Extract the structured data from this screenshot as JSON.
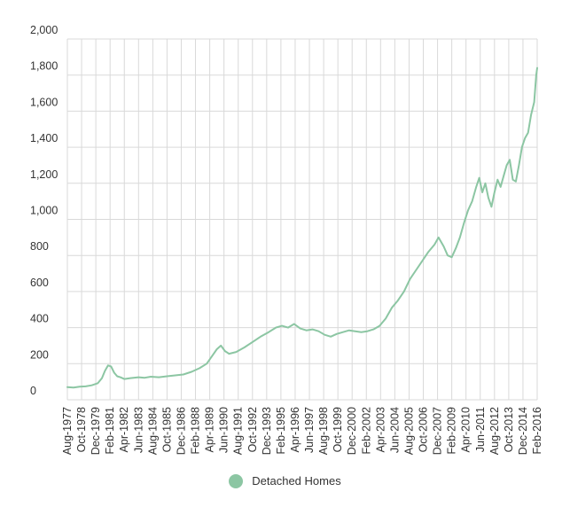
{
  "chart_data": {
    "type": "line",
    "title": "",
    "xlabel": "",
    "ylabel": "",
    "ylim": [
      0,
      2000
    ],
    "yticks": [
      0,
      200,
      400,
      600,
      800,
      1000,
      1200,
      1400,
      1600,
      1800,
      2000
    ],
    "ytick_labels": [
      "0",
      "200",
      "400",
      "600",
      "800",
      "1,000",
      "1,200",
      "1,400",
      "1,600",
      "1,800",
      "2,000"
    ],
    "x_range": [
      "1977-08",
      "2016-02"
    ],
    "xtick_labels": [
      "Aug-1977",
      "Oct-1978",
      "Dec-1979",
      "Feb-1981",
      "Apr-1982",
      "Jun-1983",
      "Aug-1984",
      "Oct-1985",
      "Dec-1986",
      "Feb-1988",
      "Apr-1989",
      "Jun-1990",
      "Aug-1991",
      "Oct-1992",
      "Dec-1993",
      "Feb-1995",
      "Apr-1996",
      "Jun-1997",
      "Aug-1998",
      "Oct-1999",
      "Dec-2000",
      "Feb-2002",
      "Apr-2003",
      "Jun-2004",
      "Aug-2005",
      "Oct-2006",
      "Dec-2007",
      "Feb-2009",
      "Apr-2010",
      "Jun-2011",
      "Aug-2012",
      "Oct-2013",
      "Dec-2014",
      "Feb-2016"
    ],
    "grid": true,
    "legend_position": "bottom",
    "series": [
      {
        "name": "Detached Homes",
        "color": "#8cc6a3",
        "x": [
          "1977-08",
          "1978-02",
          "1978-08",
          "1979-02",
          "1979-08",
          "1980-02",
          "1980-06",
          "1980-09",
          "1980-12",
          "1981-03",
          "1981-06",
          "1981-09",
          "1981-12",
          "1982-04",
          "1982-10",
          "1983-06",
          "1983-12",
          "1984-06",
          "1985-02",
          "1985-10",
          "1986-06",
          "1987-02",
          "1987-10",
          "1988-06",
          "1989-01",
          "1989-06",
          "1989-11",
          "1990-03",
          "1990-07",
          "1990-11",
          "1991-06",
          "1992-02",
          "1992-10",
          "1993-06",
          "1994-02",
          "1994-09",
          "1995-03",
          "1995-09",
          "1996-03",
          "1996-09",
          "1997-03",
          "1997-09",
          "1998-03",
          "1998-09",
          "1999-03",
          "1999-09",
          "2000-03",
          "2000-09",
          "2001-03",
          "2001-09",
          "2002-03",
          "2002-09",
          "2003-03",
          "2003-09",
          "2004-03",
          "2004-09",
          "2005-03",
          "2005-09",
          "2006-03",
          "2006-09",
          "2007-03",
          "2007-09",
          "2008-01",
          "2008-06",
          "2008-10",
          "2009-02",
          "2009-06",
          "2009-10",
          "2010-02",
          "2010-06",
          "2010-10",
          "2011-02",
          "2011-05",
          "2011-08",
          "2011-11",
          "2012-02",
          "2012-05",
          "2012-08",
          "2012-11",
          "2013-02",
          "2013-05",
          "2013-08",
          "2013-11",
          "2014-02",
          "2014-05",
          "2014-08",
          "2014-11",
          "2015-02",
          "2015-05",
          "2015-08",
          "2015-11",
          "2016-01",
          "2016-02"
        ],
        "values": [
          70,
          68,
          72,
          74,
          80,
          92,
          120,
          160,
          190,
          185,
          150,
          130,
          125,
          115,
          120,
          125,
          122,
          128,
          125,
          130,
          135,
          140,
          155,
          175,
          200,
          240,
          280,
          300,
          270,
          255,
          265,
          290,
          320,
          350,
          375,
          400,
          410,
          400,
          420,
          395,
          385,
          390,
          380,
          360,
          350,
          365,
          375,
          385,
          380,
          375,
          380,
          390,
          410,
          450,
          510,
          550,
          600,
          670,
          720,
          770,
          820,
          860,
          900,
          850,
          800,
          790,
          840,
          900,
          980,
          1050,
          1100,
          1180,
          1230,
          1150,
          1200,
          1120,
          1070,
          1150,
          1220,
          1180,
          1240,
          1300,
          1330,
          1220,
          1210,
          1300,
          1400,
          1450,
          1480,
          1580,
          1650,
          1800,
          1840
        ]
      }
    ]
  }
}
